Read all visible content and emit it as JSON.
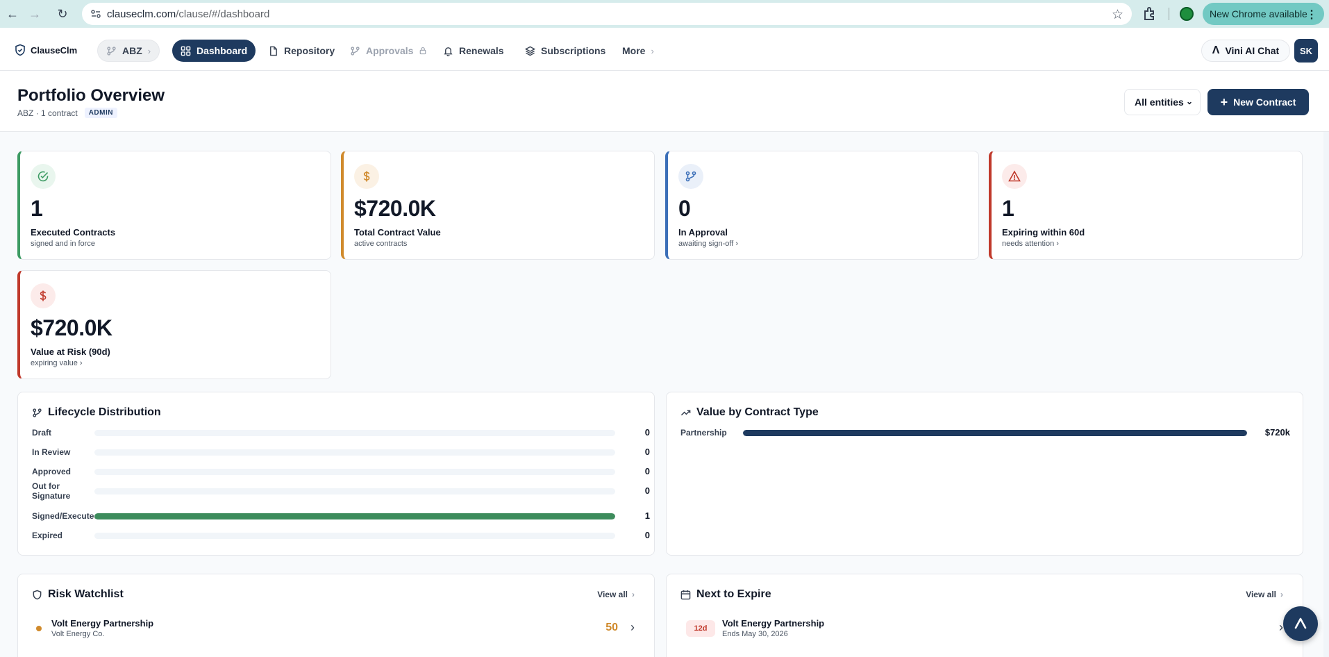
{
  "browser": {
    "url_host": "clauseclm.com",
    "url_path": "/clause/#/dashboard",
    "update_label": "New Chrome available"
  },
  "nav": {
    "logo": "ClauseClm",
    "entity": "ABZ",
    "items": [
      "Dashboard",
      "Repository",
      "Approvals",
      "Renewals",
      "Subscriptions",
      "More"
    ],
    "ai_chat": "Vini AI Chat",
    "avatar": "SK"
  },
  "header": {
    "title": "Portfolio Overview",
    "subtitle": "ABZ · 1 contract",
    "role": "ADMIN",
    "entity_filter": "All entities",
    "new_contract": "New Contract"
  },
  "kpis": [
    {
      "value": "1",
      "label": "Executed Contracts",
      "sub": "signed and in force",
      "color": "#3d9b63"
    },
    {
      "value": "$720.0K",
      "label": "Total Contract Value",
      "sub": "active contracts",
      "color": "#d08a2c"
    },
    {
      "value": "0",
      "label": "In Approval",
      "sub": "awaiting sign-off ›",
      "color": "#3b6fb8"
    },
    {
      "value": "1",
      "label": "Expiring within 60d",
      "sub": "needs attention ›",
      "color": "#c0392b"
    },
    {
      "value": "$720.0K",
      "label": "Value at Risk (90d)",
      "sub": "expiring value ›",
      "color": "#c0392b"
    }
  ],
  "lifecycle": {
    "title": "Lifecycle Distribution",
    "rows": [
      {
        "label": "Draft",
        "count": "0",
        "fraction": 0
      },
      {
        "label": "In Review",
        "count": "0",
        "fraction": 0
      },
      {
        "label": "Approved",
        "count": "0",
        "fraction": 0
      },
      {
        "label": "Out for Signature",
        "count": "0",
        "fraction": 0
      },
      {
        "label": "Signed/Executed",
        "count": "1",
        "fraction": 1
      },
      {
        "label": "Expired",
        "count": "0",
        "fraction": 0
      }
    ]
  },
  "value_by_type": {
    "title": "Value by Contract Type",
    "rows": [
      {
        "label": "Partnership",
        "value": "$720k",
        "fraction": 1
      }
    ]
  },
  "risk_watchlist": {
    "title": "Risk Watchlist",
    "view_all": "View all",
    "items": [
      {
        "name": "Volt Energy Partnership",
        "party": "Volt Energy Co.",
        "score": "50"
      }
    ]
  },
  "next_to_expire": {
    "title": "Next to Expire",
    "view_all": "View all",
    "items": [
      {
        "days": "12d",
        "name": "Volt Energy Partnership",
        "ends": "Ends May 30, 2026"
      }
    ]
  }
}
